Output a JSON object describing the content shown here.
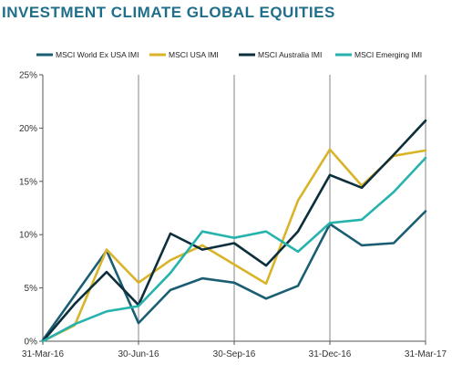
{
  "chart_data": {
    "type": "line",
    "title": "INVESTMENT CLIMATE GLOBAL EQUITIES",
    "x": [
      "31-Mar-16",
      "30-Apr-16",
      "31-May-16",
      "30-Jun-16",
      "31-Jul-16",
      "31-Aug-16",
      "30-Sep-16",
      "31-Oct-16",
      "30-Nov-16",
      "31-Dec-16",
      "31-Jan-17",
      "28-Feb-17",
      "31-Mar-17"
    ],
    "x_tick_labels": [
      "31-Mar-16",
      "30-Jun-16",
      "30-Sep-16",
      "31-Dec-16",
      "31-Mar-17"
    ],
    "x_tick_index": [
      0,
      3,
      6,
      9,
      12
    ],
    "y_tick_labels": [
      "0%",
      "5%",
      "10%",
      "15%",
      "20%",
      "25%"
    ],
    "ylim": [
      0,
      25
    ],
    "grid": "vertical lines at quarter ticks",
    "legend_position": "top",
    "series": [
      {
        "name": "MSCI World Ex USA IMI",
        "color": "#1b5e73",
        "values": [
          0.1,
          4.3,
          8.5,
          1.7,
          4.8,
          5.9,
          5.5,
          4.0,
          5.2,
          11.0,
          9.0,
          9.2,
          12.2
        ]
      },
      {
        "name": "MSCI USA IMI",
        "color": "#d9b429",
        "values": [
          0.0,
          1.5,
          8.6,
          5.5,
          7.6,
          9.0,
          7.2,
          5.4,
          13.2,
          18.0,
          14.6,
          17.4,
          17.9
        ]
      },
      {
        "name": "MSCI Australia IMI",
        "color": "#0d2f3c",
        "values": [
          0.0,
          3.5,
          6.5,
          3.4,
          10.1,
          8.6,
          9.2,
          7.1,
          10.3,
          15.6,
          14.4,
          17.5,
          20.7
        ]
      },
      {
        "name": "MSCI Emerging IMI",
        "color": "#26b2ad",
        "values": [
          0.0,
          1.6,
          2.8,
          3.3,
          6.4,
          10.3,
          9.7,
          10.3,
          8.4,
          11.1,
          11.4,
          14.0,
          17.2
        ]
      }
    ]
  }
}
